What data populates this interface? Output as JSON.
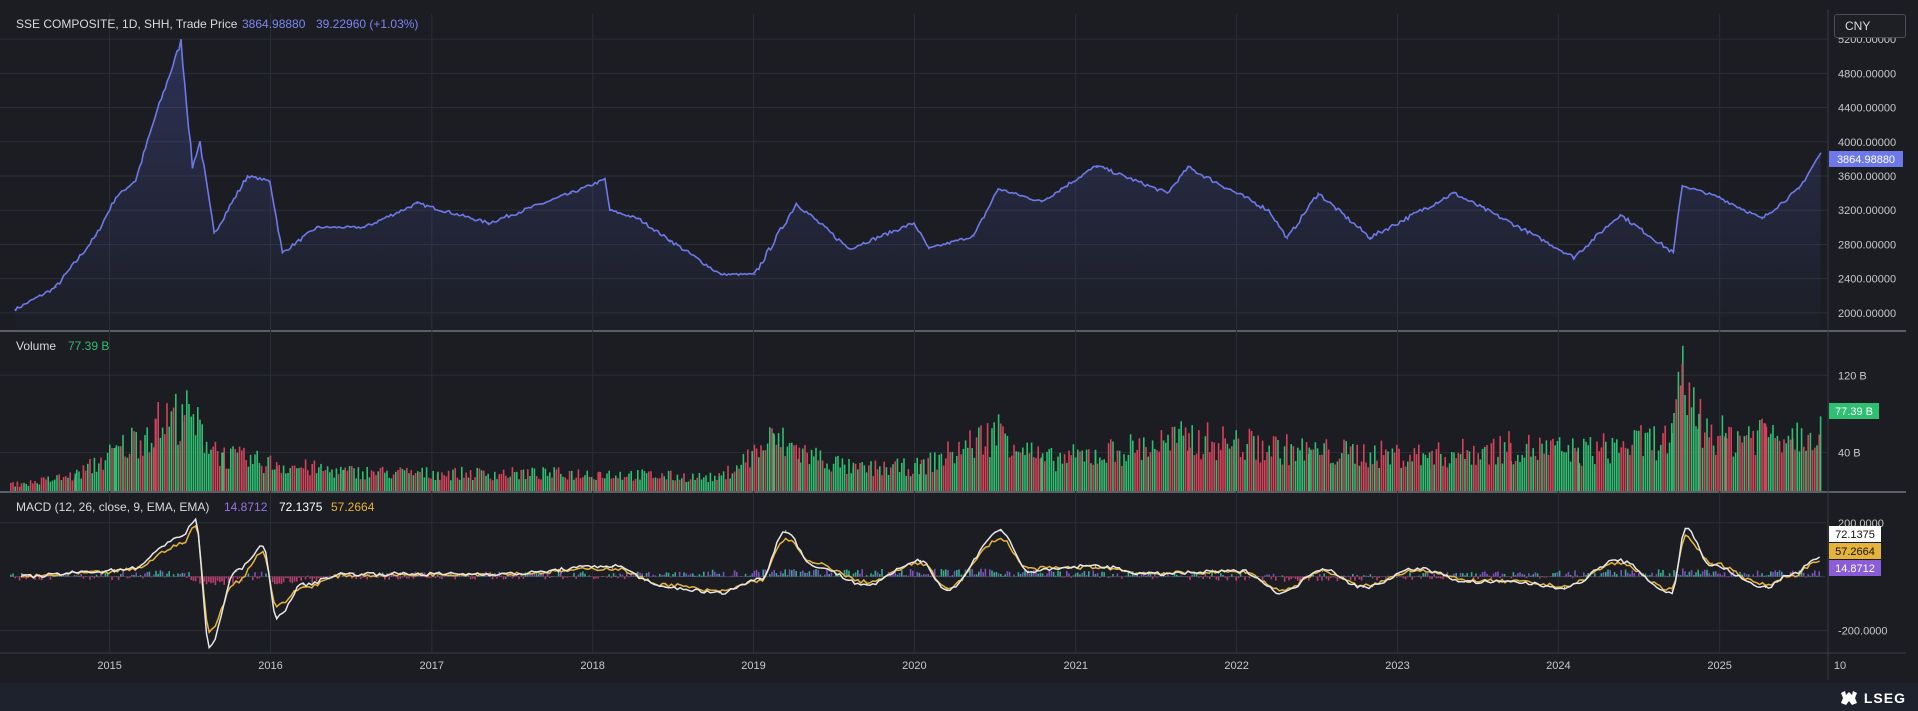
{
  "header": {
    "title": "SSE COMPOSITE, 1D, SHH, Trade Price",
    "last": "3864.98880",
    "change": "39.22960 (+1.03%)",
    "last_price_label": "3864.98880"
  },
  "currency_button": {
    "label": "CNY"
  },
  "volume_header": {
    "label": "Volume",
    "value": "77.39 B",
    "last_label": "77.39 B"
  },
  "macd_header": {
    "label": "MACD (12, 26, close, 9, EMA, EMA)",
    "hist": "14.8712",
    "macd": "72.1375",
    "signal": "57.2664"
  },
  "brand": {
    "name": "LSEG"
  },
  "colors": {
    "price_line": "#6d79e8",
    "volume_up": "#2fbf71",
    "volume_down": "#d5425a",
    "macd_line": "#e6e6e6",
    "signal_line": "#e6b33a",
    "histogram": "#8a5cd6",
    "background": "#1b1d23"
  },
  "chart_data": [
    {
      "type": "line",
      "title": "SSE COMPOSITE, 1D, SHH, Trade Price",
      "x": [
        "2014-06-01",
        "2014-09-01",
        "2014-12-01",
        "2015-01-15",
        "2015-03-01",
        "2015-04-15",
        "2015-06-12",
        "2015-07-08",
        "2015-07-25",
        "2015-08-26",
        "2015-11-10",
        "2015-12-31",
        "2016-01-28",
        "2016-04-15",
        "2016-08-01",
        "2016-11-29",
        "2017-05-10",
        "2017-11-13",
        "2018-01-29",
        "2018-02-09",
        "2018-04-15",
        "2018-06-25",
        "2018-10-18",
        "2019-01-04",
        "2019-04-08",
        "2019-08-06",
        "2019-12-31",
        "2020-02-03",
        "2020-05-15",
        "2020-07-09",
        "2020-10-15",
        "2021-02-18",
        "2021-07-28",
        "2021-09-13",
        "2022-03-15",
        "2022-04-26",
        "2022-07-05",
        "2022-10-31",
        "2023-05-09",
        "2023-10-23",
        "2024-02-05",
        "2024-05-20",
        "2024-09-18",
        "2024-10-08",
        "2024-12-31",
        "2025-04-07",
        "2025-06-30",
        "2025-08-18"
      ],
      "y": [
        2040,
        2300,
        2900,
        3350,
        3550,
        4300,
        5170,
        3700,
        4000,
        2930,
        3600,
        3540,
        2700,
        3000,
        3000,
        3280,
        3050,
        3400,
        3560,
        3200,
        3100,
        2850,
        2450,
        2450,
        3280,
        2750,
        3050,
        2750,
        2900,
        3450,
        3300,
        3720,
        3400,
        3700,
        3200,
        2870,
        3400,
        2880,
        3400,
        2950,
        2650,
        3150,
        2700,
        3490,
        3350,
        3100,
        3450,
        3865
      ],
      "ylim": [
        1800,
        5400
      ],
      "yticks": [
        "5200.00000",
        "4800.00000",
        "4400.00000",
        "4000.00000",
        "3600.00000",
        "3200.00000",
        "2800.00000",
        "2400.00000",
        "2000.00000"
      ],
      "xticks": [
        "2015",
        "2016",
        "2017",
        "2018",
        "2019",
        "2020",
        "2021",
        "2022",
        "2023",
        "2024",
        "2025",
        "10"
      ]
    },
    {
      "type": "bar",
      "title": "Volume",
      "x": [
        "2014-06",
        "2014-10",
        "2015-01",
        "2015-04",
        "2015-06",
        "2015-09",
        "2016-01",
        "2016-06",
        "2017-01",
        "2018-01",
        "2018-10",
        "2019-02",
        "2019-04",
        "2019-08",
        "2020-01",
        "2020-07",
        "2020-10",
        "2021-02",
        "2021-09",
        "2022-06",
        "2023-03",
        "2023-09",
        "2024-02",
        "2024-09",
        "2024-10-08",
        "2024-11",
        "2025-01",
        "2025-04",
        "2025-06",
        "2025-08-18"
      ],
      "values": [
        8,
        18,
        45,
        75,
        90,
        40,
        30,
        22,
        20,
        20,
        15,
        60,
        45,
        25,
        28,
        70,
        35,
        42,
        60,
        45,
        40,
        50,
        45,
        60,
        132,
        80,
        60,
        70,
        65,
        77.39
      ],
      "ylim": [
        0,
        140
      ],
      "yticks": [
        "120 B",
        "40 B"
      ]
    },
    {
      "type": "line",
      "title": "MACD (12, 26, close, 9, EMA, EMA)",
      "series": [
        {
          "name": "MACD",
          "x": [
            "2014-06",
            "2014-12",
            "2015-02",
            "2015-06",
            "2015-07",
            "2015-08",
            "2015-10",
            "2015-12",
            "2016-01",
            "2016-03",
            "2016-06",
            "2017-06",
            "2018-02",
            "2018-06",
            "2018-10",
            "2019-01",
            "2019-03",
            "2019-05",
            "2019-09",
            "2020-01",
            "2020-03",
            "2020-07",
            "2020-09",
            "2021-02",
            "2021-06",
            "2022-01",
            "2022-04",
            "2022-07",
            "2022-10",
            "2023-02",
            "2023-06",
            "2023-09",
            "2024-01",
            "2024-05",
            "2024-09",
            "2024-10",
            "2024-12",
            "2025-04",
            "2025-06",
            "2025-08"
          ],
          "values": [
            0,
            20,
            30,
            150,
            210,
            -260,
            20,
            110,
            -150,
            -30,
            10,
            10,
            40,
            -40,
            -60,
            -10,
            170,
            40,
            -30,
            60,
            -50,
            170,
            20,
            40,
            10,
            20,
            -60,
            30,
            -40,
            30,
            -20,
            -20,
            -40,
            60,
            -60,
            180,
            40,
            -40,
            10,
            72.1375
          ]
        },
        {
          "name": "Signal",
          "x": [
            "2014-06",
            "2014-12",
            "2015-02",
            "2015-06",
            "2015-07",
            "2015-08",
            "2015-10",
            "2015-12",
            "2016-01",
            "2016-03",
            "2016-06",
            "2017-06",
            "2018-02",
            "2018-06",
            "2018-10",
            "2019-01",
            "2019-03",
            "2019-05",
            "2019-09",
            "2020-01",
            "2020-03",
            "2020-07",
            "2020-09",
            "2021-02",
            "2021-06",
            "2022-01",
            "2022-04",
            "2022-07",
            "2022-10",
            "2023-02",
            "2023-06",
            "2023-09",
            "2024-01",
            "2024-05",
            "2024-09",
            "2024-10",
            "2024-12",
            "2025-04",
            "2025-06",
            "2025-08"
          ],
          "values": [
            0,
            15,
            25,
            120,
            190,
            -200,
            -20,
            90,
            -110,
            -40,
            5,
            10,
            30,
            -30,
            -55,
            -15,
            140,
            50,
            -20,
            50,
            -40,
            140,
            30,
            35,
            12,
            18,
            -50,
            20,
            -35,
            25,
            -15,
            -18,
            -35,
            50,
            -50,
            150,
            50,
            -30,
            5,
            57.2664
          ]
        },
        {
          "name": "Histogram",
          "x": [
            "2014-06",
            "2015-02",
            "2015-06",
            "2015-08",
            "2015-12",
            "2016-01",
            "2016-06",
            "2018-02",
            "2019-03",
            "2020-07",
            "2022-04",
            "2024-10",
            "2025-08"
          ],
          "values": [
            0,
            5,
            30,
            -60,
            20,
            -40,
            5,
            10,
            30,
            30,
            -10,
            30,
            14.8712
          ]
        }
      ],
      "ylim": [
        -280,
        240
      ],
      "yticks": [
        "200.0000",
        "-200.0000"
      ]
    }
  ]
}
